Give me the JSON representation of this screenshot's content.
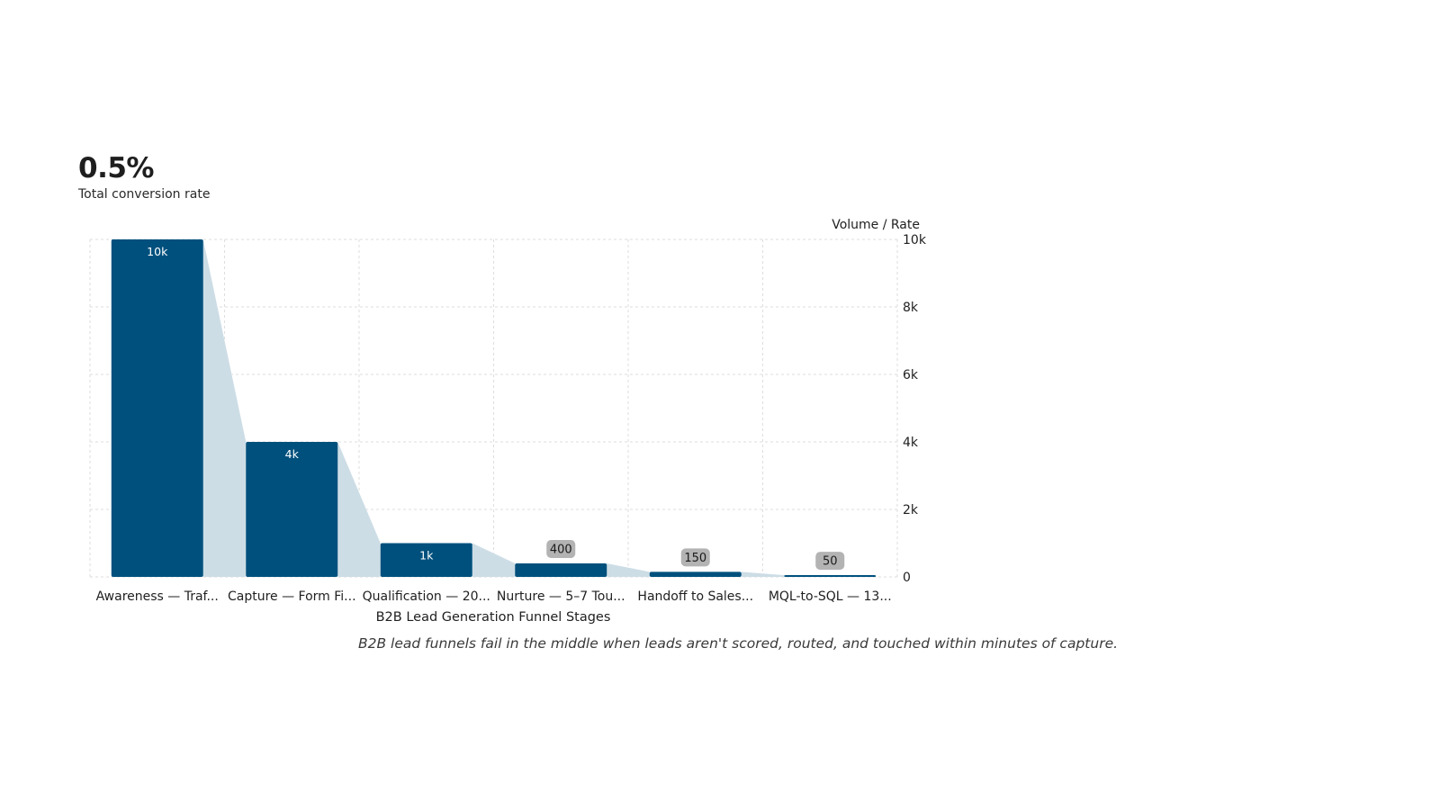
{
  "kpi": {
    "value": "0.5%",
    "label": "Total conversion rate"
  },
  "caption": "B2B lead funnels fail in the middle when leads aren't scored, routed, and touched within minutes of capture.",
  "colors": {
    "bar": "#00507d",
    "funnel_fill": "#cddde6",
    "grid": "#dedede",
    "label_badge": "#b3b3b3",
    "text": "#1f1f1f"
  },
  "chart_data": {
    "type": "bar",
    "xlabel": "B2B Lead Generation Funnel Stages",
    "ylabel": "Volume / Rate",
    "ylim": [
      0,
      10000
    ],
    "y_ticks": [
      0,
      2000,
      4000,
      6000,
      8000,
      10000
    ],
    "y_tick_labels": [
      "0",
      "2k",
      "4k",
      "6k",
      "8k",
      "10k"
    ],
    "y_axis_side": "right",
    "grid": true,
    "categories": [
      "Awareness — Traf...",
      "Capture — Form Fi...",
      "Qualification — 20...",
      "Nurture — 5–7 Tou...",
      "Handoff to Sales...",
      "MQL-to-SQL — 13..."
    ],
    "values": [
      10000,
      4000,
      1000,
      400,
      150,
      50
    ],
    "data_labels": [
      "10k",
      "4k",
      "1k",
      "400",
      "150",
      "50"
    ]
  }
}
